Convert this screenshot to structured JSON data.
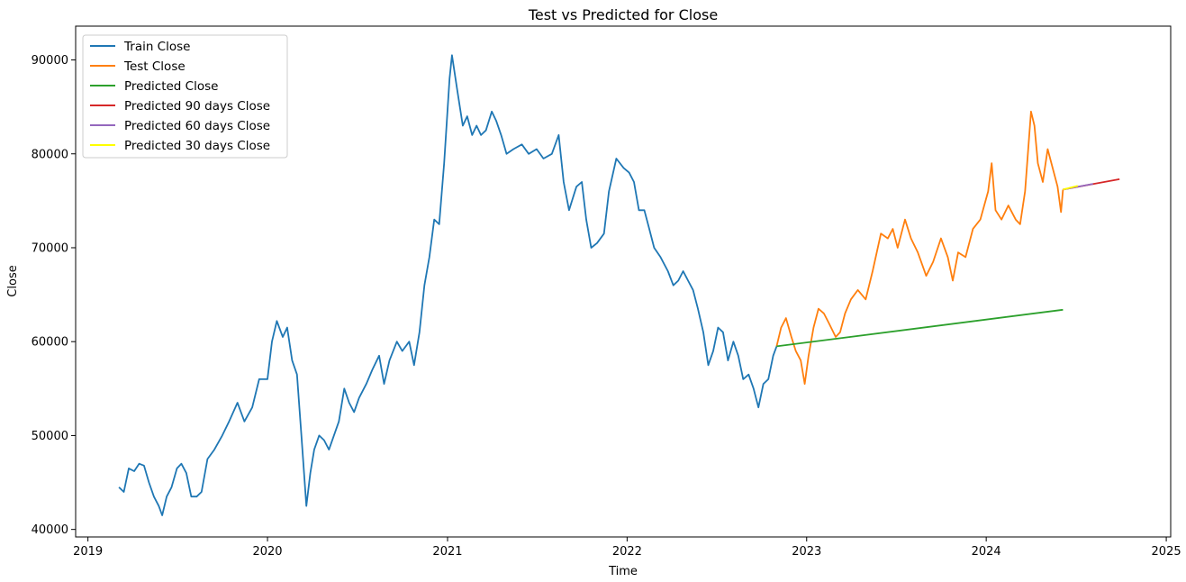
{
  "chart_data": {
    "type": "line",
    "title": "Test vs Predicted for Close",
    "xlabel": "Time",
    "ylabel": "Close",
    "xlim": [
      "2018-12-07",
      "2025-01-10"
    ],
    "ylim": [
      39200,
      93600
    ],
    "x_ticks": [
      "2019",
      "2020",
      "2021",
      "2022",
      "2023",
      "2024",
      "2025"
    ],
    "y_ticks": [
      40000,
      50000,
      60000,
      70000,
      80000,
      90000
    ],
    "grid": false,
    "legend_position": "top-left",
    "series": [
      {
        "name": "Train Close",
        "color": "#1f77b4",
        "points": [
          [
            "2019-03-05",
            44500
          ],
          [
            "2019-03-15",
            44000
          ],
          [
            "2019-03-25",
            46500
          ],
          [
            "2019-04-05",
            46200
          ],
          [
            "2019-04-15",
            47000
          ],
          [
            "2019-04-25",
            46800
          ],
          [
            "2019-05-05",
            45000
          ],
          [
            "2019-05-15",
            43500
          ],
          [
            "2019-05-25",
            42500
          ],
          [
            "2019-06-01",
            41500
          ],
          [
            "2019-06-10",
            43500
          ],
          [
            "2019-06-20",
            44500
          ],
          [
            "2019-07-01",
            46500
          ],
          [
            "2019-07-10",
            47000
          ],
          [
            "2019-07-20",
            46000
          ],
          [
            "2019-07-30",
            43500
          ],
          [
            "2019-08-10",
            43500
          ],
          [
            "2019-08-20",
            44000
          ],
          [
            "2019-09-01",
            47500
          ],
          [
            "2019-09-15",
            48500
          ],
          [
            "2019-10-01",
            50000
          ],
          [
            "2019-10-15",
            51500
          ],
          [
            "2019-11-01",
            53500
          ],
          [
            "2019-11-15",
            51500
          ],
          [
            "2019-12-01",
            53000
          ],
          [
            "2019-12-15",
            56000
          ],
          [
            "2020-01-01",
            56000
          ],
          [
            "2020-01-10",
            60000
          ],
          [
            "2020-01-20",
            62200
          ],
          [
            "2020-02-01",
            60500
          ],
          [
            "2020-02-10",
            61500
          ],
          [
            "2020-02-20",
            58000
          ],
          [
            "2020-03-01",
            56500
          ],
          [
            "2020-03-10",
            50000
          ],
          [
            "2020-03-20",
            42500
          ],
          [
            "2020-03-28",
            46000
          ],
          [
            "2020-04-05",
            48500
          ],
          [
            "2020-04-15",
            50000
          ],
          [
            "2020-04-25",
            49500
          ],
          [
            "2020-05-05",
            48500
          ],
          [
            "2020-05-15",
            50000
          ],
          [
            "2020-05-25",
            51500
          ],
          [
            "2020-06-05",
            55000
          ],
          [
            "2020-06-15",
            53500
          ],
          [
            "2020-06-25",
            52500
          ],
          [
            "2020-07-05",
            54000
          ],
          [
            "2020-07-20",
            55500
          ],
          [
            "2020-08-01",
            57000
          ],
          [
            "2020-08-15",
            58500
          ],
          [
            "2020-08-25",
            55500
          ],
          [
            "2020-09-05",
            58000
          ],
          [
            "2020-09-20",
            60000
          ],
          [
            "2020-10-01",
            59000
          ],
          [
            "2020-10-15",
            60000
          ],
          [
            "2020-10-25",
            57500
          ],
          [
            "2020-11-05",
            61000
          ],
          [
            "2020-11-15",
            66000
          ],
          [
            "2020-11-25",
            69000
          ],
          [
            "2020-12-05",
            73000
          ],
          [
            "2020-12-15",
            72500
          ],
          [
            "2020-12-25",
            79000
          ],
          [
            "2021-01-05",
            88000
          ],
          [
            "2021-01-10",
            90500
          ],
          [
            "2021-01-20",
            87000
          ],
          [
            "2021-02-01",
            83000
          ],
          [
            "2021-02-10",
            84000
          ],
          [
            "2021-02-20",
            82000
          ],
          [
            "2021-03-01",
            83000
          ],
          [
            "2021-03-10",
            82000
          ],
          [
            "2021-03-20",
            82500
          ],
          [
            "2021-04-01",
            84500
          ],
          [
            "2021-04-10",
            83500
          ],
          [
            "2021-04-20",
            82000
          ],
          [
            "2021-05-01",
            80000
          ],
          [
            "2021-05-15",
            80500
          ],
          [
            "2021-06-01",
            81000
          ],
          [
            "2021-06-15",
            80000
          ],
          [
            "2021-07-01",
            80500
          ],
          [
            "2021-07-15",
            79500
          ],
          [
            "2021-08-01",
            80000
          ],
          [
            "2021-08-15",
            82000
          ],
          [
            "2021-08-25",
            77000
          ],
          [
            "2021-09-05",
            74000
          ],
          [
            "2021-09-20",
            76500
          ],
          [
            "2021-10-01",
            77000
          ],
          [
            "2021-10-10",
            73000
          ],
          [
            "2021-10-20",
            70000
          ],
          [
            "2021-11-01",
            70500
          ],
          [
            "2021-11-15",
            71500
          ],
          [
            "2021-11-25",
            76000
          ],
          [
            "2021-12-10",
            79500
          ],
          [
            "2021-12-25",
            78500
          ],
          [
            "2022-01-05",
            78000
          ],
          [
            "2022-01-15",
            77000
          ],
          [
            "2022-01-25",
            74000
          ],
          [
            "2022-02-05",
            74000
          ],
          [
            "2022-02-15",
            72000
          ],
          [
            "2022-02-25",
            70000
          ],
          [
            "2022-03-10",
            69000
          ],
          [
            "2022-03-25",
            67500
          ],
          [
            "2022-04-05",
            66000
          ],
          [
            "2022-04-15",
            66500
          ],
          [
            "2022-04-25",
            67500
          ],
          [
            "2022-05-05",
            66500
          ],
          [
            "2022-05-15",
            65500
          ],
          [
            "2022-05-25",
            63500
          ],
          [
            "2022-06-05",
            61000
          ],
          [
            "2022-06-15",
            57500
          ],
          [
            "2022-06-25",
            59000
          ],
          [
            "2022-07-05",
            61500
          ],
          [
            "2022-07-15",
            61000
          ],
          [
            "2022-07-25",
            58000
          ],
          [
            "2022-08-05",
            60000
          ],
          [
            "2022-08-15",
            58500
          ],
          [
            "2022-08-25",
            56000
          ],
          [
            "2022-09-05",
            56500
          ],
          [
            "2022-09-15",
            55000
          ],
          [
            "2022-09-25",
            53000
          ],
          [
            "2022-10-05",
            55500
          ],
          [
            "2022-10-15",
            56000
          ],
          [
            "2022-10-25",
            58500
          ],
          [
            "2022-11-01",
            59500
          ]
        ]
      },
      {
        "name": "Test Close",
        "color": "#ff7f0e",
        "points": [
          [
            "2022-11-01",
            59500
          ],
          [
            "2022-11-10",
            61500
          ],
          [
            "2022-11-20",
            62500
          ],
          [
            "2022-12-01",
            60500
          ],
          [
            "2022-12-10",
            59000
          ],
          [
            "2022-12-20",
            58000
          ],
          [
            "2022-12-28",
            55500
          ],
          [
            "2023-01-05",
            58500
          ],
          [
            "2023-01-15",
            61500
          ],
          [
            "2023-01-25",
            63500
          ],
          [
            "2023-02-05",
            63000
          ],
          [
            "2023-02-15",
            62000
          ],
          [
            "2023-03-01",
            60500
          ],
          [
            "2023-03-10",
            61000
          ],
          [
            "2023-03-20",
            63000
          ],
          [
            "2023-04-01",
            64500
          ],
          [
            "2023-04-15",
            65500
          ],
          [
            "2023-05-01",
            64500
          ],
          [
            "2023-05-15",
            67500
          ],
          [
            "2023-06-01",
            71500
          ],
          [
            "2023-06-15",
            71000
          ],
          [
            "2023-06-25",
            72000
          ],
          [
            "2023-07-05",
            70000
          ],
          [
            "2023-07-20",
            73000
          ],
          [
            "2023-08-01",
            71000
          ],
          [
            "2023-08-15",
            69500
          ],
          [
            "2023-09-01",
            67000
          ],
          [
            "2023-09-15",
            68500
          ],
          [
            "2023-10-01",
            71000
          ],
          [
            "2023-10-15",
            69000
          ],
          [
            "2023-10-25",
            66500
          ],
          [
            "2023-11-05",
            69500
          ],
          [
            "2023-11-20",
            69000
          ],
          [
            "2023-12-05",
            72000
          ],
          [
            "2023-12-20",
            73000
          ],
          [
            "2024-01-05",
            76000
          ],
          [
            "2024-01-12",
            79000
          ],
          [
            "2024-01-20",
            74000
          ],
          [
            "2024-02-01",
            73000
          ],
          [
            "2024-02-15",
            74500
          ],
          [
            "2024-03-01",
            73000
          ],
          [
            "2024-03-10",
            72500
          ],
          [
            "2024-03-20",
            76000
          ],
          [
            "2024-04-01",
            84500
          ],
          [
            "2024-04-08",
            83000
          ],
          [
            "2024-04-15",
            79000
          ],
          [
            "2024-04-25",
            77000
          ],
          [
            "2024-05-05",
            80500
          ],
          [
            "2024-05-15",
            78500
          ],
          [
            "2024-05-25",
            76500
          ],
          [
            "2024-06-01",
            73800
          ],
          [
            "2024-06-05",
            76200
          ]
        ]
      },
      {
        "name": "Predicted Close",
        "color": "#2ca02c",
        "points": [
          [
            "2022-11-01",
            59500
          ],
          [
            "2024-06-05",
            63400
          ]
        ]
      },
      {
        "name": "Predicted 90 days Close",
        "color": "#d62728",
        "points": [
          [
            "2024-06-05",
            76200
          ],
          [
            "2024-09-28",
            77300
          ]
        ]
      },
      {
        "name": "Predicted 60 days Close",
        "color": "#9467bd",
        "points": [
          [
            "2024-06-05",
            76200
          ],
          [
            "2024-08-05",
            76800
          ]
        ]
      },
      {
        "name": "Predicted 30 days Close",
        "color": "#ffff00",
        "points": [
          [
            "2024-06-05",
            76200
          ],
          [
            "2024-07-05",
            76600
          ]
        ]
      }
    ]
  }
}
